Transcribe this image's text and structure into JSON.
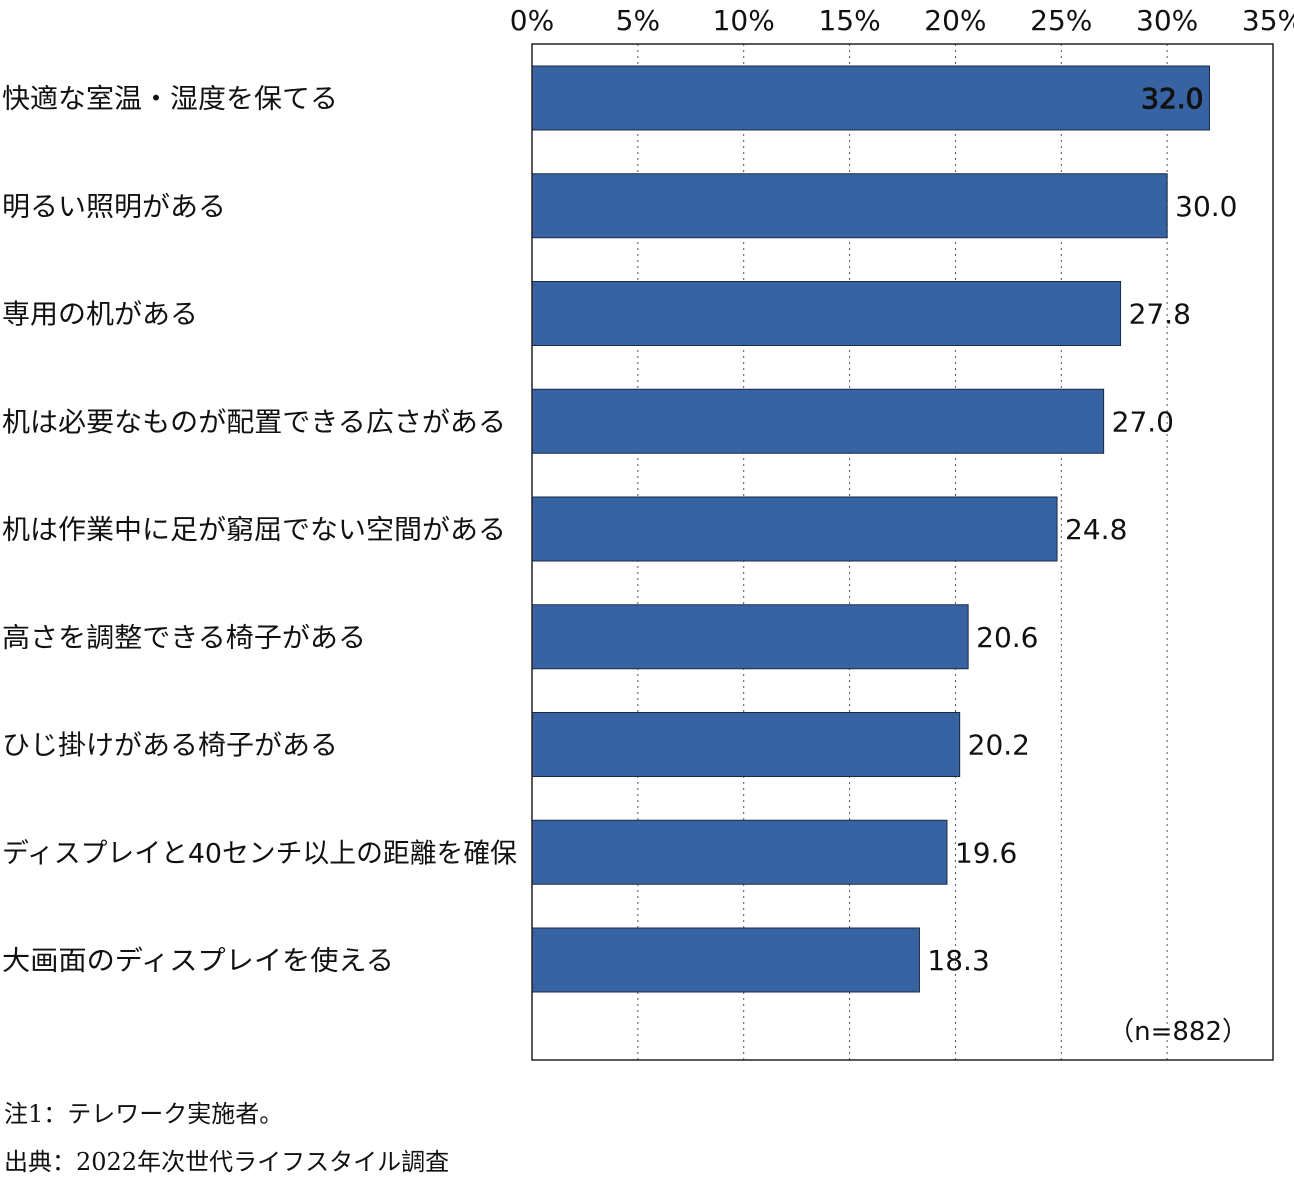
{
  "chart_data": {
    "type": "bar",
    "orientation": "horizontal",
    "categories": [
      "快適な室温・湿度を保てる",
      "明るい照明がある",
      "専用の机がある",
      "机は必要なものが配置できる広さがある",
      "机は作業中に足が窮屈でない空間がある",
      "高さを調整できる椅子がある",
      "ひじ掛けがある椅子がある",
      "ディスプレイと40センチ以上の距離を確保",
      "大画面のディスプレイを使える"
    ],
    "values": [
      32.0,
      30.0,
      27.8,
      27.0,
      24.8,
      20.6,
      20.2,
      19.6,
      18.3
    ],
    "value_labels": [
      "32.0",
      "30.0",
      "27.8",
      "27.0",
      "24.8",
      "20.6",
      "20.2",
      "19.6",
      "18.3"
    ],
    "xlim": [
      0,
      35
    ],
    "tick_values": [
      0,
      5,
      10,
      15,
      20,
      25,
      30,
      35
    ],
    "tick_labels": [
      "0%",
      "5%",
      "10%",
      "15%",
      "20%",
      "25%",
      "30%",
      "35%"
    ],
    "grid": "vertical dotted",
    "annotation": "（n=882）",
    "bar_color": "#3863a3"
  },
  "notes": {
    "note1": "注1：テレワーク実施者。",
    "source": "出典：2022年次世代ライフスタイル調査"
  }
}
